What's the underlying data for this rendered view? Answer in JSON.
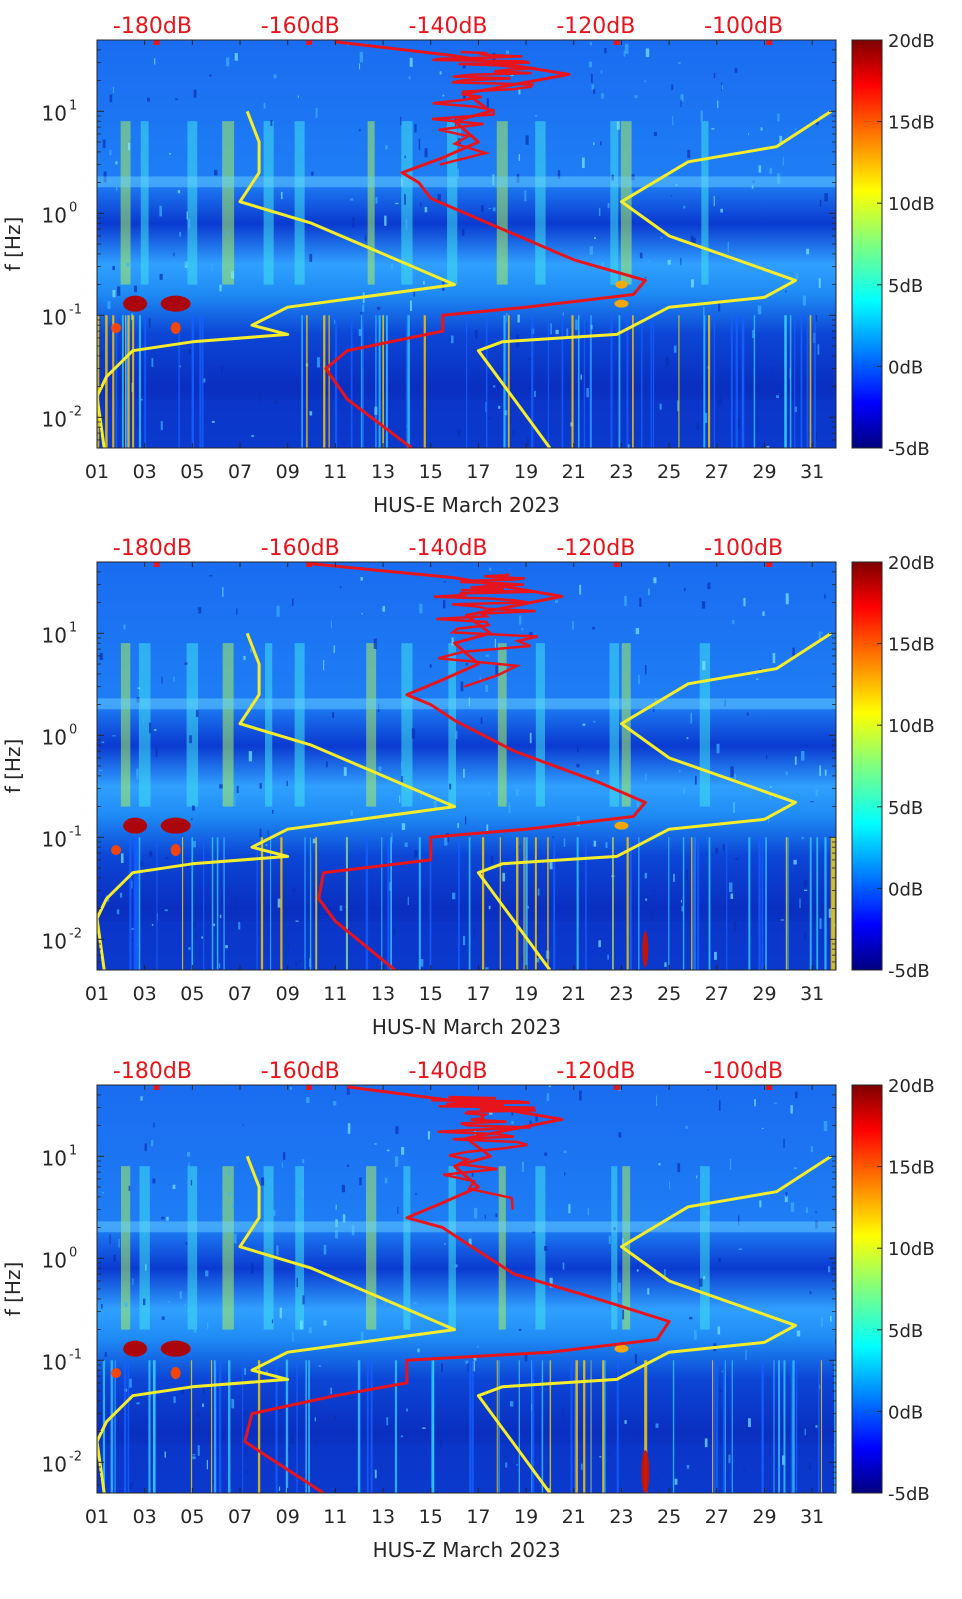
{
  "chart_data": [
    {
      "type": "heatmap",
      "title": "",
      "xlabel": "HUS-E March 2023",
      "ylabel": "f [Hz]",
      "x_ticks": [
        "01",
        "03",
        "05",
        "07",
        "09",
        "11",
        "13",
        "15",
        "17",
        "19",
        "21",
        "23",
        "25",
        "27",
        "29",
        "31"
      ],
      "x_range": [
        1,
        32
      ],
      "y_scale": "log",
      "y_ticks": [
        {
          "label": "10",
          "exp": "-2"
        },
        {
          "label": "10",
          "exp": "-1"
        },
        {
          "label": "10",
          "exp": "0"
        },
        {
          "label": "10",
          "exp": "1"
        }
      ],
      "y_range": [
        0.005,
        50
      ],
      "colorbar": {
        "ticks": [
          "20dB",
          "15dB",
          "10dB",
          "5dB",
          "0dB",
          "-5dB"
        ],
        "range": [
          -5,
          20
        ],
        "colormap": "jet"
      },
      "top_axis": {
        "ticks": [
          "-180dB",
          "-160dB",
          "-140dB",
          "-120dB",
          "-100dB"
        ],
        "color": "#e8141c",
        "range": [
          -187.5,
          -87.5
        ]
      },
      "series": [
        {
          "color": "#f5ec2a",
          "points": [
            [
              1.3,
              0.005
            ],
            [
              1.0,
              0.016
            ],
            [
              1.4,
              0.025
            ],
            [
              2.5,
              0.045
            ],
            [
              5.0,
              0.055
            ],
            [
              9.0,
              0.065
            ],
            [
              7.5,
              0.08
            ],
            [
              9.0,
              0.12
            ],
            [
              16.0,
              0.2
            ],
            [
              13.0,
              0.4
            ],
            [
              10.0,
              0.8
            ],
            [
              7.0,
              1.3
            ],
            [
              7.8,
              2.5
            ],
            [
              7.8,
              5.0
            ],
            [
              7.3,
              10.0
            ]
          ]
        },
        {
          "color": "#f5ec2a",
          "points": [
            [
              20.0,
              0.005
            ],
            [
              18.5,
              0.015
            ],
            [
              17.0,
              0.045
            ],
            [
              18.0,
              0.055
            ],
            [
              22.8,
              0.065
            ],
            [
              25.0,
              0.12
            ],
            [
              29.0,
              0.15
            ],
            [
              30.3,
              0.22
            ],
            [
              25.0,
              0.6
            ],
            [
              23.0,
              1.3
            ],
            [
              25.8,
              3.2
            ],
            [
              29.5,
              4.5
            ],
            [
              31.8,
              10.0
            ]
          ]
        }
      ],
      "noise_curve": {
        "color": "#e8141c",
        "points": [
          [
            14.2,
            0.005
          ],
          [
            11.5,
            0.015
          ],
          [
            10.6,
            0.03
          ],
          [
            11.5,
            0.045
          ],
          [
            15.5,
            0.07
          ],
          [
            15.5,
            0.1
          ],
          [
            19.0,
            0.12
          ],
          [
            23.5,
            0.16
          ],
          [
            24.0,
            0.22
          ],
          [
            21.0,
            0.35
          ],
          [
            18.0,
            0.7
          ],
          [
            15.0,
            1.4
          ],
          [
            14.5,
            2.0
          ],
          [
            13.8,
            2.5
          ],
          [
            15.5,
            3.5
          ],
          [
            17.0,
            5.0
          ],
          [
            16.0,
            8.0
          ],
          [
            17.5,
            10.0
          ],
          [
            16.5,
            15.0
          ],
          [
            20.8,
            23.0
          ],
          [
            16.0,
            35.0
          ],
          [
            11.0,
            48.0
          ]
        ]
      },
      "blobs": [
        {
          "d": 2.6,
          "f": 0.13,
          "rx": 12,
          "ry": 8,
          "c": "#b30000"
        },
        {
          "d": 4.3,
          "f": 0.13,
          "rx": 15,
          "ry": 8,
          "c": "#b30000"
        },
        {
          "d": 1.8,
          "f": 0.075,
          "rx": 5,
          "ry": 5,
          "c": "#ff4400"
        },
        {
          "d": 4.3,
          "f": 0.075,
          "rx": 5,
          "ry": 6,
          "c": "#ff4400"
        },
        {
          "d": 23.0,
          "f": 0.13,
          "rx": 7,
          "ry": 4,
          "c": "#ffaa00"
        },
        {
          "d": 23.0,
          "f": 0.2,
          "rx": 6,
          "ry": 4,
          "c": "#ffaa00"
        }
      ]
    },
    {
      "type": "heatmap",
      "title": "",
      "xlabel": "HUS-N March 2023",
      "ylabel": "f [Hz]",
      "x_ticks": [
        "01",
        "03",
        "05",
        "07",
        "09",
        "11",
        "13",
        "15",
        "17",
        "19",
        "21",
        "23",
        "25",
        "27",
        "29",
        "31"
      ],
      "x_range": [
        1,
        32
      ],
      "y_scale": "log",
      "y_ticks": [
        {
          "label": "10",
          "exp": "-2"
        },
        {
          "label": "10",
          "exp": "-1"
        },
        {
          "label": "10",
          "exp": "0"
        },
        {
          "label": "10",
          "exp": "1"
        }
      ],
      "y_range": [
        0.005,
        50
      ],
      "colorbar": {
        "ticks": [
          "20dB",
          "15dB",
          "10dB",
          "5dB",
          "0dB",
          "-5dB"
        ],
        "range": [
          -5,
          20
        ],
        "colormap": "jet"
      },
      "top_axis": {
        "ticks": [
          "-180dB",
          "-160dB",
          "-140dB",
          "-120dB",
          "-100dB"
        ],
        "color": "#e8141c",
        "range": [
          -187.5,
          -87.5
        ]
      },
      "series": [
        {
          "color": "#f5ec2a",
          "points": [
            [
              1.3,
              0.005
            ],
            [
              1.0,
              0.016
            ],
            [
              1.4,
              0.025
            ],
            [
              2.5,
              0.045
            ],
            [
              5.0,
              0.055
            ],
            [
              9.0,
              0.065
            ],
            [
              7.5,
              0.08
            ],
            [
              9.0,
              0.12
            ],
            [
              16.0,
              0.2
            ],
            [
              13.0,
              0.4
            ],
            [
              10.0,
              0.8
            ],
            [
              7.0,
              1.3
            ],
            [
              7.8,
              2.5
            ],
            [
              7.8,
              5.0
            ],
            [
              7.3,
              10.0
            ]
          ]
        },
        {
          "color": "#f5ec2a",
          "points": [
            [
              20.0,
              0.005
            ],
            [
              18.5,
              0.015
            ],
            [
              17.0,
              0.045
            ],
            [
              18.0,
              0.055
            ],
            [
              22.8,
              0.065
            ],
            [
              25.0,
              0.12
            ],
            [
              29.0,
              0.15
            ],
            [
              30.3,
              0.22
            ],
            [
              25.0,
              0.6
            ],
            [
              23.0,
              1.3
            ],
            [
              25.8,
              3.2
            ],
            [
              29.5,
              4.5
            ],
            [
              31.8,
              10.0
            ]
          ]
        }
      ],
      "noise_curve": {
        "color": "#e8141c",
        "points": [
          [
            13.5,
            0.005
          ],
          [
            11.0,
            0.015
          ],
          [
            10.3,
            0.025
          ],
          [
            10.5,
            0.045
          ],
          [
            15.0,
            0.06
          ],
          [
            15.0,
            0.1
          ],
          [
            19.0,
            0.12
          ],
          [
            23.5,
            0.16
          ],
          [
            24.0,
            0.22
          ],
          [
            22.0,
            0.35
          ],
          [
            18.5,
            0.7
          ],
          [
            16.0,
            1.4
          ],
          [
            15.0,
            2.0
          ],
          [
            14.0,
            2.5
          ],
          [
            15.5,
            3.5
          ],
          [
            17.0,
            5.0
          ],
          [
            16.0,
            8.0
          ],
          [
            17.5,
            10.0
          ],
          [
            16.5,
            15.0
          ],
          [
            20.5,
            23.0
          ],
          [
            16.0,
            35.0
          ],
          [
            10.0,
            48.0
          ]
        ]
      },
      "blobs": [
        {
          "d": 2.6,
          "f": 0.13,
          "rx": 12,
          "ry": 8,
          "c": "#b30000"
        },
        {
          "d": 4.3,
          "f": 0.13,
          "rx": 15,
          "ry": 8,
          "c": "#b30000"
        },
        {
          "d": 1.8,
          "f": 0.075,
          "rx": 5,
          "ry": 5,
          "c": "#ff4400"
        },
        {
          "d": 4.3,
          "f": 0.075,
          "rx": 5,
          "ry": 6,
          "c": "#ff4400"
        },
        {
          "d": 23.0,
          "f": 0.13,
          "rx": 7,
          "ry": 4,
          "c": "#ffaa00"
        },
        {
          "d": 24.0,
          "f": 0.008,
          "rx": 3,
          "ry": 18,
          "c": "#cc1100"
        }
      ]
    },
    {
      "type": "heatmap",
      "title": "",
      "xlabel": "HUS-Z March 2023",
      "ylabel": "f [Hz]",
      "x_ticks": [
        "01",
        "03",
        "05",
        "07",
        "09",
        "11",
        "13",
        "15",
        "17",
        "19",
        "21",
        "23",
        "25",
        "27",
        "29",
        "31"
      ],
      "x_range": [
        1,
        32
      ],
      "y_scale": "log",
      "y_ticks": [
        {
          "label": "10",
          "exp": "-2"
        },
        {
          "label": "10",
          "exp": "-1"
        },
        {
          "label": "10",
          "exp": "0"
        },
        {
          "label": "10",
          "exp": "1"
        }
      ],
      "y_range": [
        0.005,
        50
      ],
      "colorbar": {
        "ticks": [
          "20dB",
          "15dB",
          "10dB",
          "5dB",
          "0dB",
          "-5dB"
        ],
        "range": [
          -5,
          20
        ],
        "colormap": "jet"
      },
      "top_axis": {
        "ticks": [
          "-180dB",
          "-160dB",
          "-140dB",
          "-120dB",
          "-100dB"
        ],
        "color": "#e8141c",
        "range": [
          -187.5,
          -87.5
        ]
      },
      "series": [
        {
          "color": "#f5ec2a",
          "points": [
            [
              1.3,
              0.005
            ],
            [
              1.0,
              0.016
            ],
            [
              1.4,
              0.025
            ],
            [
              2.5,
              0.045
            ],
            [
              5.0,
              0.055
            ],
            [
              9.0,
              0.065
            ],
            [
              7.5,
              0.08
            ],
            [
              9.0,
              0.12
            ],
            [
              16.0,
              0.2
            ],
            [
              13.0,
              0.4
            ],
            [
              10.0,
              0.8
            ],
            [
              7.0,
              1.3
            ],
            [
              7.8,
              2.5
            ],
            [
              7.8,
              5.0
            ],
            [
              7.3,
              10.0
            ]
          ]
        },
        {
          "color": "#f5ec2a",
          "points": [
            [
              20.0,
              0.005
            ],
            [
              18.5,
              0.015
            ],
            [
              17.0,
              0.045
            ],
            [
              18.0,
              0.055
            ],
            [
              22.8,
              0.065
            ],
            [
              25.0,
              0.12
            ],
            [
              29.0,
              0.15
            ],
            [
              30.3,
              0.22
            ],
            [
              25.0,
              0.6
            ],
            [
              23.0,
              1.3
            ],
            [
              25.8,
              3.2
            ],
            [
              29.5,
              4.5
            ],
            [
              31.8,
              10.0
            ]
          ]
        }
      ],
      "noise_curve": {
        "color": "#e8141c",
        "points": [
          [
            10.5,
            0.005
          ],
          [
            8.0,
            0.012
          ],
          [
            7.2,
            0.016
          ],
          [
            7.5,
            0.03
          ],
          [
            11.0,
            0.045
          ],
          [
            14.0,
            0.06
          ],
          [
            14.0,
            0.1
          ],
          [
            20.0,
            0.12
          ],
          [
            24.5,
            0.16
          ],
          [
            25.0,
            0.24
          ],
          [
            22.0,
            0.4
          ],
          [
            18.5,
            0.7
          ],
          [
            16.5,
            1.4
          ],
          [
            15.5,
            2.0
          ],
          [
            14.0,
            2.5
          ],
          [
            15.5,
            3.5
          ],
          [
            17.0,
            5.0
          ],
          [
            16.0,
            8.0
          ],
          [
            17.5,
            10.0
          ],
          [
            16.5,
            15.0
          ],
          [
            20.5,
            23.0
          ],
          [
            16.0,
            35.0
          ],
          [
            11.5,
            48.0
          ]
        ]
      },
      "blobs": [
        {
          "d": 2.6,
          "f": 0.13,
          "rx": 12,
          "ry": 8,
          "c": "#b30000"
        },
        {
          "d": 4.3,
          "f": 0.13,
          "rx": 15,
          "ry": 8,
          "c": "#b30000"
        },
        {
          "d": 1.8,
          "f": 0.075,
          "rx": 5,
          "ry": 5,
          "c": "#ff4400"
        },
        {
          "d": 4.3,
          "f": 0.075,
          "rx": 5,
          "ry": 6,
          "c": "#ff4400"
        },
        {
          "d": 23.0,
          "f": 0.13,
          "rx": 7,
          "ry": 4,
          "c": "#ffaa00"
        },
        {
          "d": 24.0,
          "f": 0.008,
          "rx": 4,
          "ry": 22,
          "c": "#cc1100"
        }
      ]
    }
  ]
}
